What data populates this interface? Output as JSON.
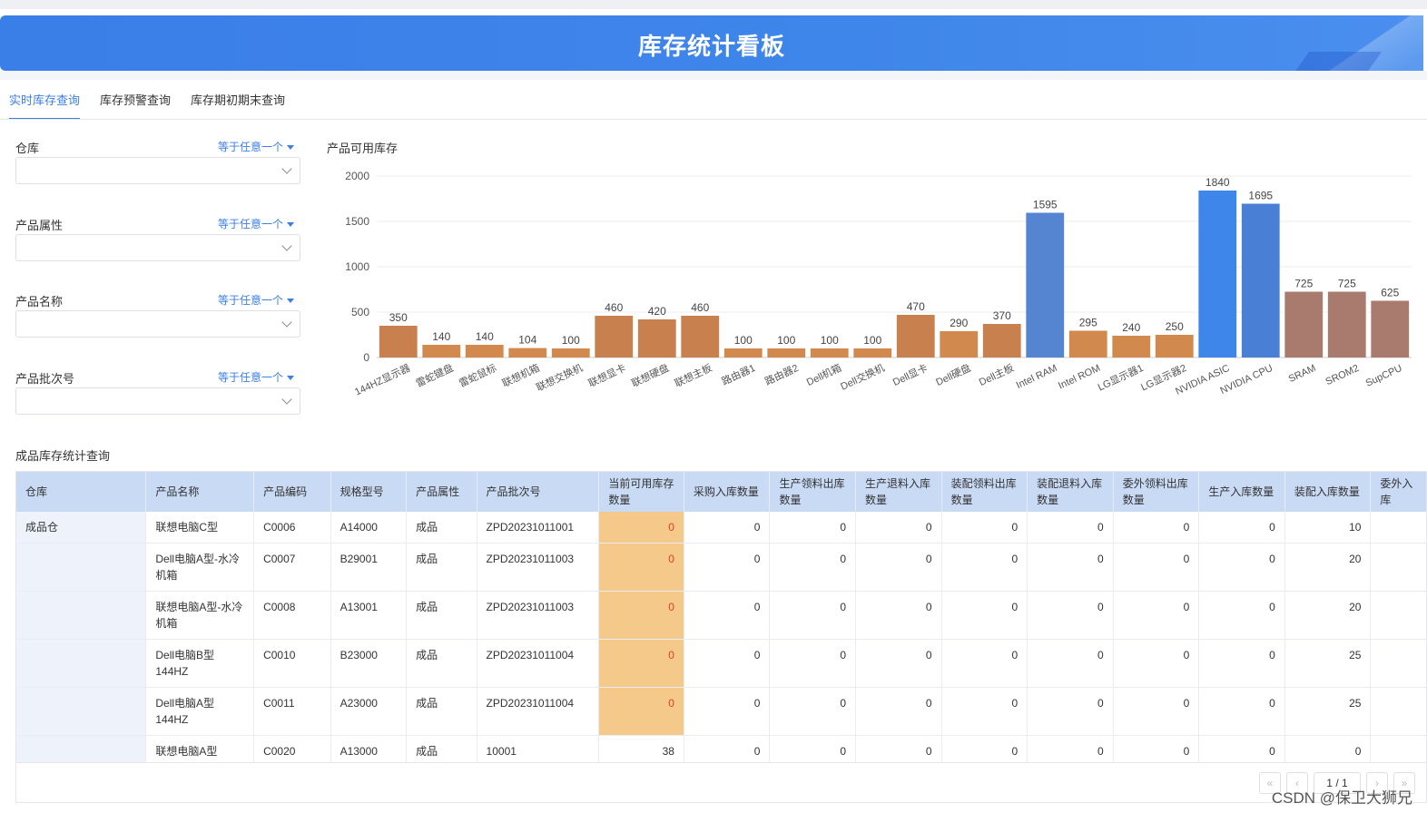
{
  "banner": {
    "title": "库存统计看板"
  },
  "tabs": [
    {
      "label": "实时库存查询"
    },
    {
      "label": "库存预警查询"
    },
    {
      "label": "库存期初期末查询"
    }
  ],
  "filters": [
    {
      "label": "仓库",
      "operator": "等于任意一个"
    },
    {
      "label": "产品属性",
      "operator": "等于任意一个"
    },
    {
      "label": "产品名称",
      "operator": "等于任意一个"
    },
    {
      "label": "产品批次号",
      "operator": "等于任意一个"
    }
  ],
  "chart_title": "产品可用库存",
  "chart_data": {
    "type": "bar",
    "title": "产品可用库存",
    "ylim": [
      0,
      2000
    ],
    "yticks": [
      0,
      500,
      1000,
      1500,
      2000
    ],
    "grid": true,
    "categories": [
      "144HZ显示器",
      "雷蛇键盘",
      "雷蛇鼠标",
      "联想机箱",
      "联想交换机",
      "联想显卡",
      "联想硬盘",
      "联想主板",
      "路由器1",
      "路由器2",
      "Dell机箱",
      "Dell交换机",
      "Dell显卡",
      "Dell硬盘",
      "Dell主板",
      "Intel RAM",
      "Intel ROM",
      "LG显示器1",
      "LG显示器2",
      "NVIDIA ASIC",
      "NVIDIA CPU",
      "SRAM",
      "SROM2",
      "SupCPU"
    ],
    "values": [
      350,
      140,
      140,
      104,
      100,
      460,
      420,
      460,
      100,
      100,
      100,
      100,
      470,
      290,
      370,
      1595,
      295,
      240,
      250,
      1840,
      1695,
      725,
      725,
      625
    ],
    "colors": [
      "#c8804f",
      "#d2894e",
      "#d2894e",
      "#d2894e",
      "#d2894e",
      "#c8804f",
      "#c8804f",
      "#c8804f",
      "#d2894e",
      "#d2894e",
      "#d2894e",
      "#d2894e",
      "#c8804f",
      "#d2894e",
      "#c8804f",
      "#5584d0",
      "#d2894e",
      "#d2894e",
      "#d2894e",
      "#3f86ea",
      "#4a7fd6",
      "#a97a6e",
      "#a97a6e",
      "#a97a6e"
    ]
  },
  "table": {
    "section_title": "成品库存统计查询",
    "headers": [
      "仓库",
      "产品名称",
      "产品编码",
      "规格型号",
      "产品属性",
      "产品批次号",
      "当前可用库存数量",
      "采购入库数量",
      "生产领料出库数量",
      "生产退料入库数量",
      "装配领料出库数量",
      "装配退料入库数量",
      "委外领料出库数量",
      "生产入库数量",
      "装配入库数量",
      "委外入库"
    ],
    "rows": [
      [
        "成品仓",
        "联想电脑C型",
        "C0006",
        "A14000",
        "成品",
        "ZPD20231011001",
        "0",
        "0",
        "0",
        "0",
        "0",
        "0",
        "0",
        "0",
        "10",
        ""
      ],
      [
        "",
        "Dell电脑A型-水冷机箱",
        "C0007",
        "B29001",
        "成品",
        "ZPD20231011003",
        "0",
        "0",
        "0",
        "0",
        "0",
        "0",
        "0",
        "0",
        "20",
        ""
      ],
      [
        "",
        "联想电脑A型-水冷机箱",
        "C0008",
        "A13001",
        "成品",
        "ZPD20231011003",
        "0",
        "0",
        "0",
        "0",
        "0",
        "0",
        "0",
        "0",
        "20",
        ""
      ],
      [
        "",
        "Dell电脑B型 144HZ",
        "C0010",
        "B23000",
        "成品",
        "ZPD20231011004",
        "0",
        "0",
        "0",
        "0",
        "0",
        "0",
        "0",
        "0",
        "25",
        ""
      ],
      [
        "",
        "Dell电脑A型 144HZ",
        "C0011",
        "A23000",
        "成品",
        "ZPD20231011004",
        "0",
        "0",
        "0",
        "0",
        "0",
        "0",
        "0",
        "0",
        "25",
        ""
      ],
      [
        "",
        "联想电脑A型",
        "C0020",
        "A13000",
        "成品",
        "10001",
        "38",
        "0",
        "0",
        "0",
        "0",
        "0",
        "0",
        "0",
        "0",
        ""
      ]
    ]
  },
  "pager": {
    "page": "1",
    "total": "1"
  },
  "watermark": "CSDN @保卫大狮兄"
}
